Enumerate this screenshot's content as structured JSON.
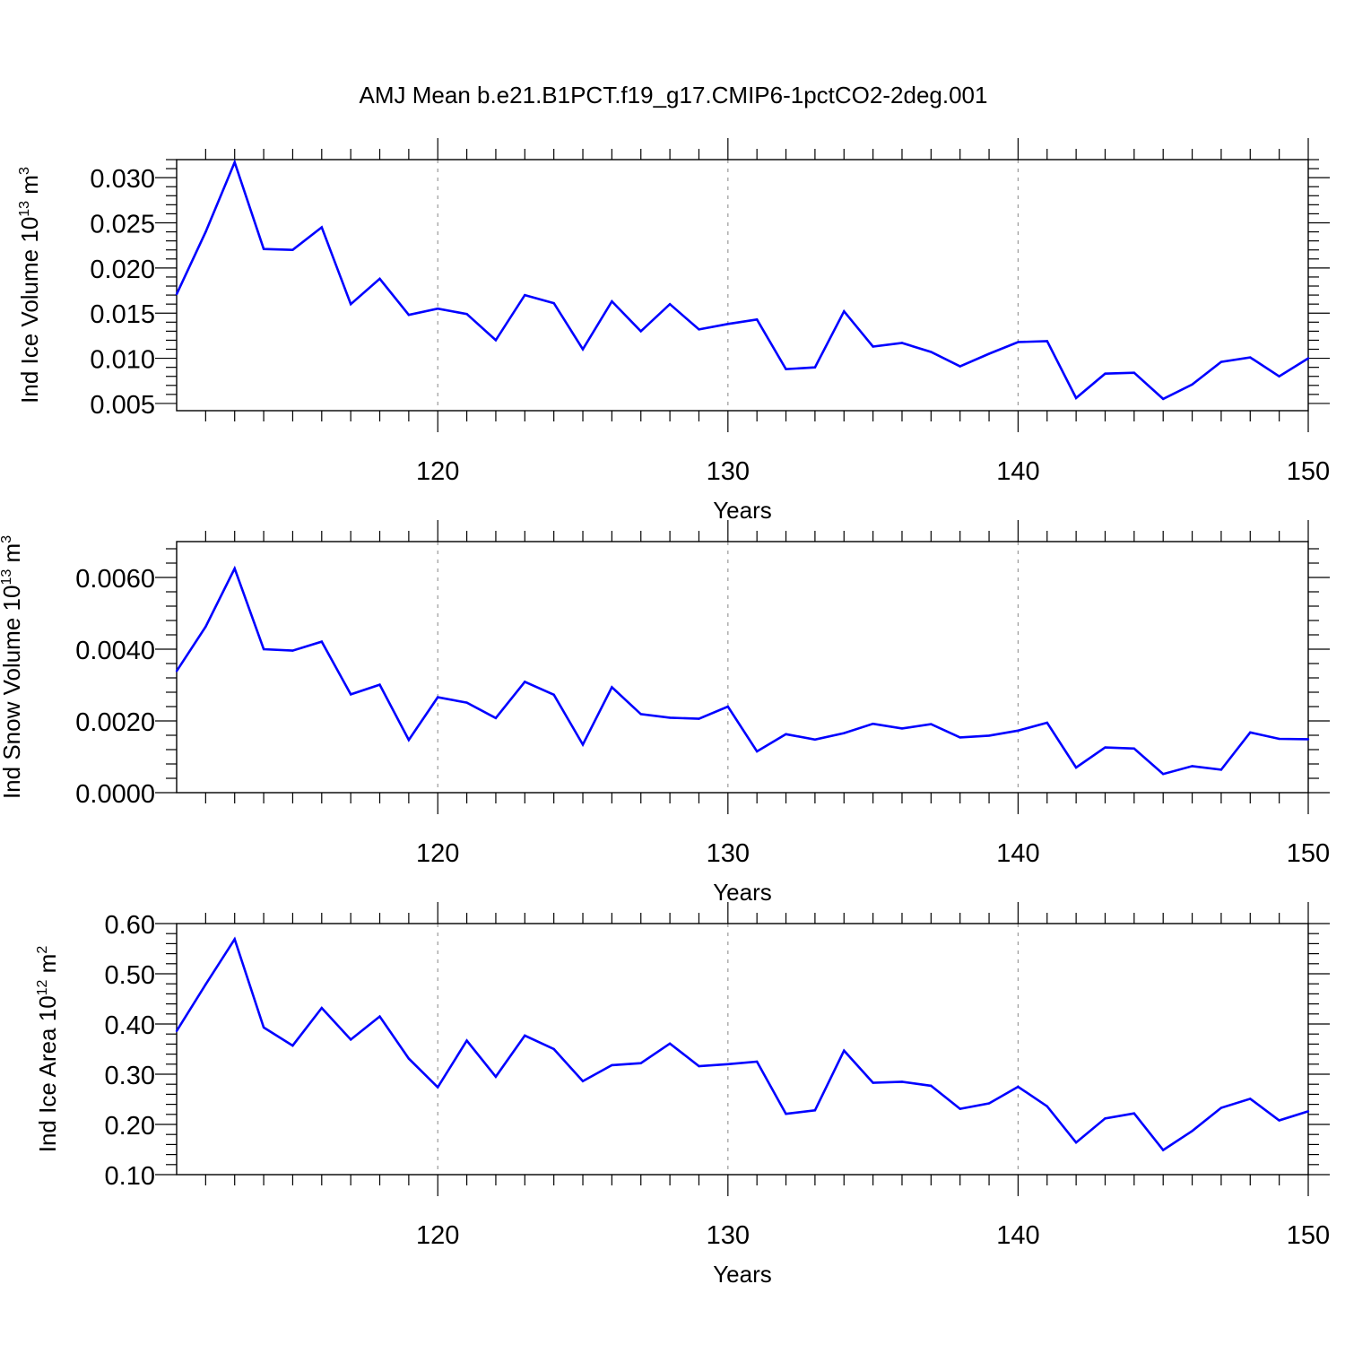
{
  "title": "AMJ Mean b.e21.B1PCT.f19_g17.CMIP6-1pctCO2-2deg.001",
  "colors": {
    "line": "#0000ff",
    "axis": "#000000",
    "grid": "#9a9a9a"
  },
  "chart_data": [
    {
      "type": "line",
      "xlabel": "Years",
      "ylabel": "Ind Ice Volume 10",
      "ylabel_sup": "13",
      "ylabel_unit": " m",
      "ylabel_unit_sup": "3",
      "xlim": [
        111,
        150
      ],
      "ylim": [
        0.0042,
        0.032
      ],
      "xticks": [
        120,
        130,
        140,
        150
      ],
      "yticks": [
        0.005,
        0.01,
        0.015,
        0.02,
        0.025,
        0.03
      ],
      "ytick_labels": [
        "0.005",
        "0.010",
        "0.015",
        "0.020",
        "0.025",
        "0.030"
      ],
      "grid_x": [
        120,
        130,
        140
      ],
      "x": [
        111,
        112,
        113,
        114,
        115,
        116,
        117,
        118,
        119,
        120,
        121,
        122,
        123,
        124,
        125,
        126,
        127,
        128,
        129,
        130,
        131,
        132,
        133,
        134,
        135,
        136,
        137,
        138,
        139,
        140,
        141,
        142,
        143,
        144,
        145,
        146,
        147,
        148,
        149,
        150
      ],
      "values": [
        0.0171,
        0.024,
        0.0317,
        0.0221,
        0.022,
        0.0245,
        0.016,
        0.0188,
        0.0148,
        0.0155,
        0.0149,
        0.012,
        0.017,
        0.0161,
        0.011,
        0.0163,
        0.013,
        0.016,
        0.0132,
        0.0138,
        0.0143,
        0.0088,
        0.009,
        0.0152,
        0.0113,
        0.0117,
        0.0107,
        0.0091,
        0.0105,
        0.0118,
        0.0119,
        0.0056,
        0.0083,
        0.0084,
        0.0055,
        0.0071,
        0.0096,
        0.0101,
        0.008,
        0.01
      ]
    },
    {
      "type": "line",
      "xlabel": "Years",
      "ylabel": "Ind Snow Volume 10",
      "ylabel_sup": "13",
      "ylabel_unit": " m",
      "ylabel_unit_sup": "3",
      "xlim": [
        111,
        150
      ],
      "ylim": [
        0.0,
        0.007
      ],
      "xticks": [
        120,
        130,
        140,
        150
      ],
      "yticks": [
        0.0,
        0.002,
        0.004,
        0.006
      ],
      "ytick_labels": [
        "0.0000",
        "0.0020",
        "0.0040",
        "0.0060"
      ],
      "grid_x": [
        120,
        130,
        140
      ],
      "x": [
        111,
        112,
        113,
        114,
        115,
        116,
        117,
        118,
        119,
        120,
        121,
        122,
        123,
        124,
        125,
        126,
        127,
        128,
        129,
        130,
        131,
        132,
        133,
        134,
        135,
        136,
        137,
        138,
        139,
        140,
        141,
        142,
        143,
        144,
        145,
        146,
        147,
        148,
        149,
        150
      ],
      "values": [
        0.00339,
        0.00463,
        0.00625,
        0.004,
        0.00396,
        0.00421,
        0.00274,
        0.00301,
        0.00147,
        0.00266,
        0.00251,
        0.00208,
        0.00309,
        0.00273,
        0.00134,
        0.00294,
        0.00219,
        0.00209,
        0.00206,
        0.0024,
        0.00115,
        0.00163,
        0.00148,
        0.00166,
        0.00192,
        0.00179,
        0.00191,
        0.00154,
        0.00159,
        0.00173,
        0.00195,
        0.0007,
        0.00126,
        0.00123,
        0.00052,
        0.00074,
        0.00064,
        0.00168,
        0.0015,
        0.00149
      ]
    },
    {
      "type": "line",
      "xlabel": "Years",
      "ylabel": "Ind Ice Area 10",
      "ylabel_sup": "12",
      "ylabel_unit": " m",
      "ylabel_unit_sup": "2",
      "xlim": [
        111,
        150
      ],
      "ylim": [
        0.1,
        0.6
      ],
      "xticks": [
        120,
        130,
        140,
        150
      ],
      "yticks": [
        0.1,
        0.2,
        0.3,
        0.4,
        0.5,
        0.6
      ],
      "ytick_labels": [
        "0.10",
        "0.20",
        "0.30",
        "0.40",
        "0.50",
        "0.60"
      ],
      "grid_x": [
        120,
        130,
        140
      ],
      "x": [
        111,
        112,
        113,
        114,
        115,
        116,
        117,
        118,
        119,
        120,
        121,
        122,
        123,
        124,
        125,
        126,
        127,
        128,
        129,
        130,
        131,
        132,
        133,
        134,
        135,
        136,
        137,
        138,
        139,
        140,
        141,
        142,
        143,
        144,
        145,
        146,
        147,
        148,
        149,
        150
      ],
      "values": [
        0.386,
        0.479,
        0.569,
        0.393,
        0.357,
        0.432,
        0.369,
        0.415,
        0.331,
        0.274,
        0.367,
        0.295,
        0.377,
        0.35,
        0.286,
        0.318,
        0.322,
        0.361,
        0.316,
        0.32,
        0.325,
        0.221,
        0.228,
        0.347,
        0.283,
        0.285,
        0.277,
        0.231,
        0.242,
        0.275,
        0.236,
        0.164,
        0.212,
        0.222,
        0.149,
        0.187,
        0.233,
        0.251,
        0.208,
        0.226
      ]
    }
  ]
}
